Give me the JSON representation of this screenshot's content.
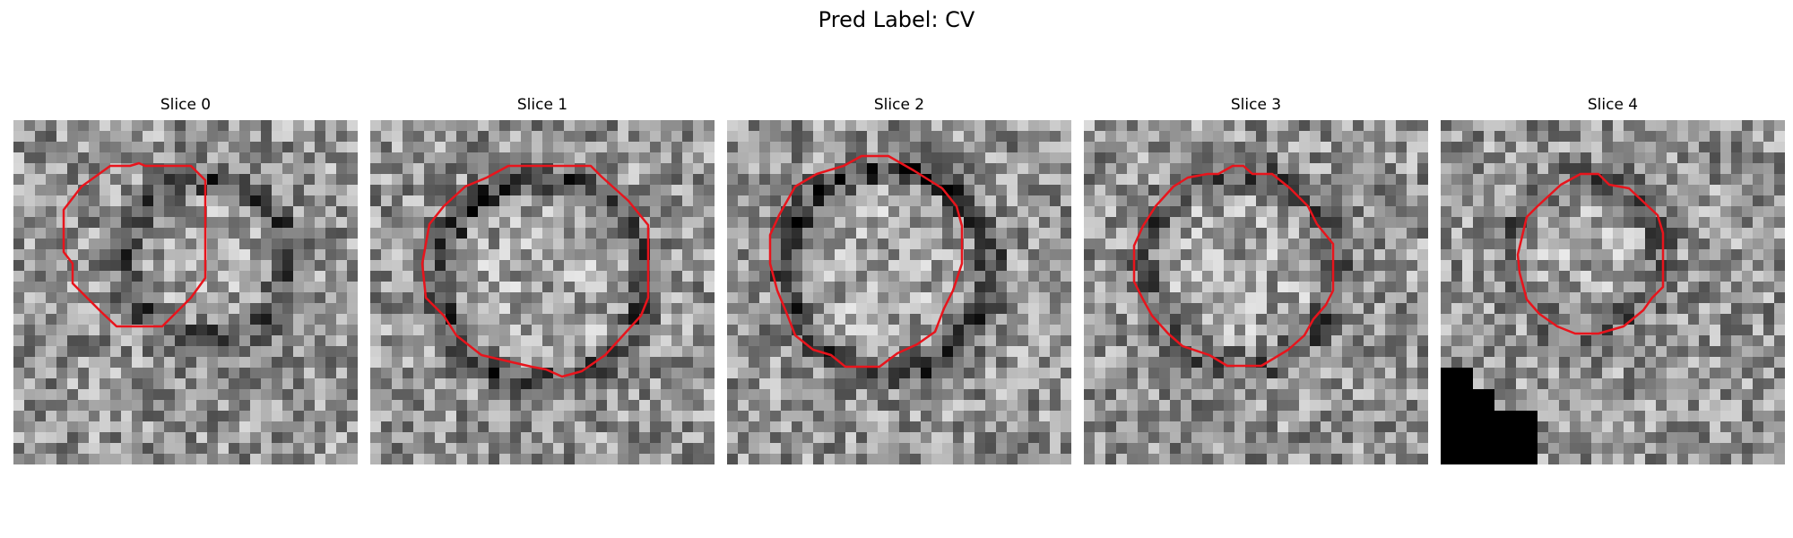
{
  "figure": {
    "title": "Pred Label: CV"
  },
  "slices": [
    {
      "title": "Slice 0"
    },
    {
      "title": "Slice 1"
    },
    {
      "title": "Slice 2"
    },
    {
      "title": "Slice 3"
    },
    {
      "title": "Slice 4"
    }
  ],
  "colors": {
    "contour": "#e8141c",
    "colormap": "gray"
  }
}
